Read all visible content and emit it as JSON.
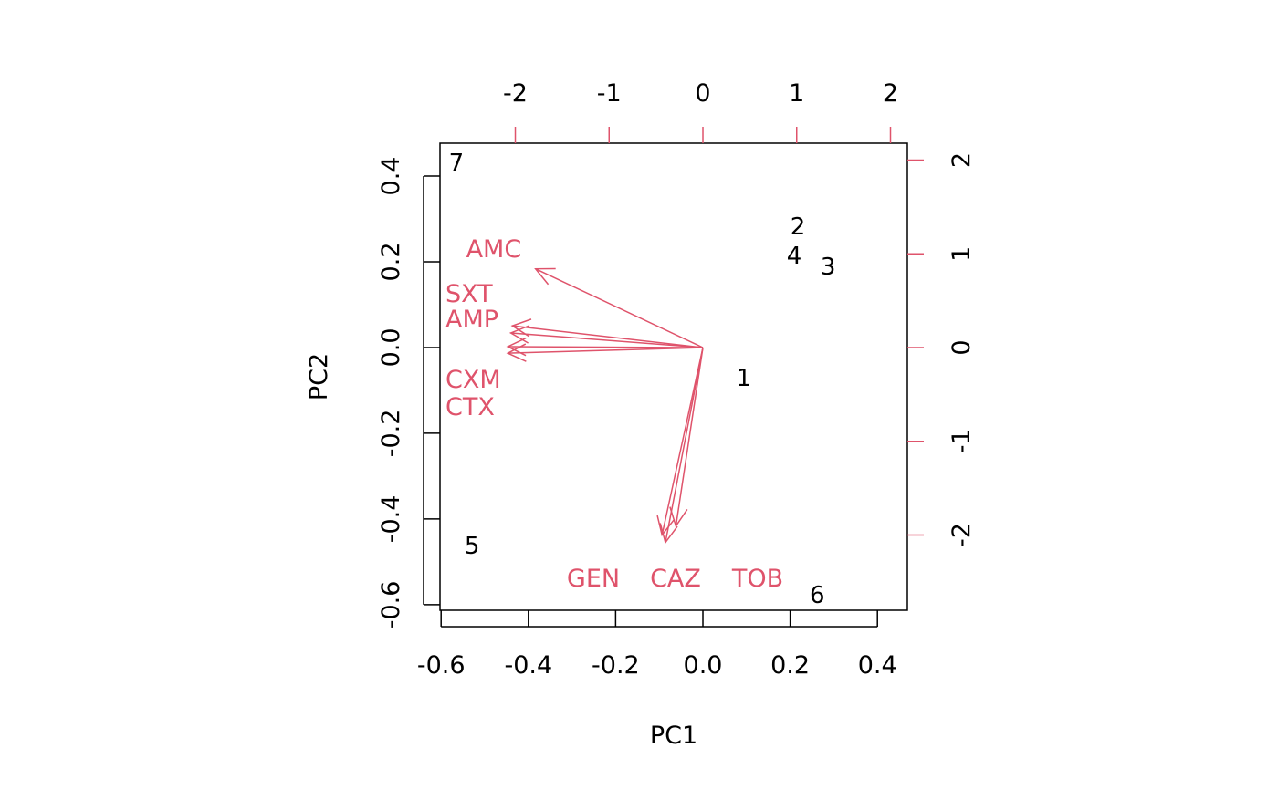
{
  "chart_data": {
    "type": "biplot",
    "xlabel": "PC1",
    "ylabel": "PC2",
    "xlim": [
      -0.6025,
      0.4686
    ],
    "ylim": [
      -0.613,
      0.4766
    ],
    "x_ticks": [
      "-0.6",
      "-0.4",
      "-0.2",
      "0.0",
      "0.2",
      "0.4"
    ],
    "y_ticks": [
      "-0.6",
      "-0.4",
      "-0.2",
      "0.0",
      "0.2",
      "0.4"
    ],
    "top_ticks": [
      "-2",
      "-1",
      "0",
      "1",
      "2"
    ],
    "right_ticks": [
      "-2",
      "-1",
      "0",
      "1",
      "2"
    ],
    "var_axis_lim": [
      -2.803,
      2.18
    ],
    "var_axis_ylim": [
      -2.803,
      2.18
    ],
    "arrow_color": "#DF536B",
    "point_color": "#000000",
    "observations": [
      {
        "label": "1",
        "x": 0.094,
        "y": -0.07
      },
      {
        "label": "2",
        "x": 0.222,
        "y": 0.247
      },
      {
        "label": "3",
        "x": 0.287,
        "y": 0.189
      },
      {
        "label": "4",
        "x": 0.224,
        "y": 0.23
      },
      {
        "label": "5",
        "x": -0.529,
        "y": -0.462
      },
      {
        "label": "6",
        "x": 0.262,
        "y": -0.577
      },
      {
        "label": "7",
        "x": -0.565,
        "y": 0.432
      }
    ],
    "variables": [
      {
        "label": "AMC",
        "x": -2.23,
        "y": 1.05
      },
      {
        "label": "SXT",
        "x": -2.54,
        "y": 0.29
      },
      {
        "label": "AMP",
        "x": -2.56,
        "y": 0.195
      },
      {
        "label": "CXM",
        "x": -2.6,
        "y": 0.012
      },
      {
        "label": "CTX",
        "x": -2.6,
        "y": -0.075
      },
      {
        "label": "CAZ",
        "x": -0.36,
        "y": -2.38
      },
      {
        "label": "GEN",
        "x": -0.545,
        "y": -2.5
      },
      {
        "label": "TOB",
        "x": -0.5,
        "y": -2.6
      }
    ]
  }
}
